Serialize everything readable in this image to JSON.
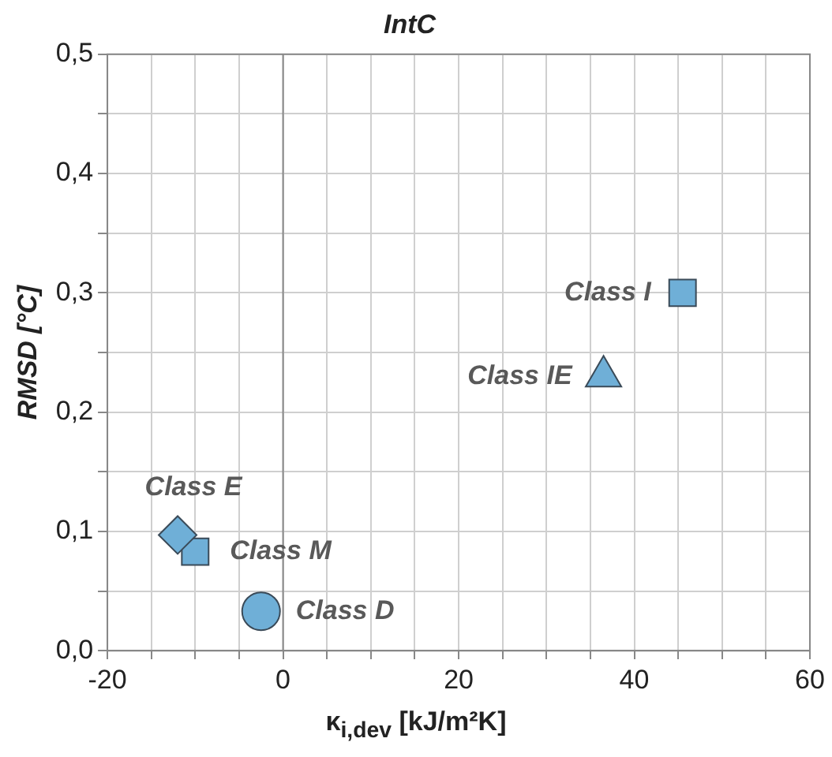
{
  "chart_data": {
    "type": "scatter",
    "title": "IntC",
    "xlabel": "κ$_{i,dev}$ [kJ/m²K]",
    "ylabel": "RMSD [°C]",
    "series": [
      {
        "name": "Class I",
        "color": "#6fafd7",
        "marker": "square",
        "x": [
          45.5
        ],
        "values": [
          0.3
        ]
      },
      {
        "name": "Class IE",
        "color": "#6fafd7",
        "marker": "triangle",
        "x": [
          36.5
        ],
        "values": [
          0.23
        ]
      },
      {
        "name": "Class E",
        "color": "#6fafd7",
        "marker": "diamond",
        "x": [
          -12
        ],
        "values": [
          0.097
        ]
      },
      {
        "name": "Class M",
        "color": "#6fafd7",
        "marker": "square",
        "x": [
          -10
        ],
        "values": [
          0.083
        ]
      },
      {
        "name": "Class D",
        "color": "#6fafd7",
        "marker": "circle",
        "x": [
          -2.5
        ],
        "values": [
          0.033
        ]
      }
    ],
    "xlim": [
      -20,
      60
    ],
    "xticks": [
      -20,
      {
        "value": -15,
        "label": null
      },
      {
        "value": -10,
        "label": null
      },
      {
        "value": -5,
        "label": null
      },
      0,
      {
        "value": 5,
        "label": null
      },
      {
        "value": 10,
        "label": null
      },
      {
        "value": 15,
        "label": null
      },
      20,
      {
        "value": 25,
        "label": null
      },
      {
        "value": 30,
        "label": null
      },
      {
        "value": 35,
        "label": null
      },
      40,
      {
        "value": 45,
        "label": null
      },
      {
        "value": 50,
        "label": null
      },
      {
        "value": 55,
        "label": null
      },
      60
    ],
    "ylim": [
      0,
      0.5
    ],
    "yticks": [
      {
        "value": 0,
        "label": "0,0"
      },
      {
        "value": 0.05,
        "label": null
      },
      {
        "value": 0.1,
        "label": "0,1"
      },
      {
        "value": 0.15,
        "label": null
      },
      {
        "value": 0.2,
        "label": "0,2"
      },
      {
        "value": 0.25,
        "label": null
      },
      {
        "value": 0.3,
        "label": "0,3"
      },
      {
        "value": 0.35,
        "label": null
      },
      {
        "value": 0.4,
        "label": "0,4"
      },
      {
        "value": 0.45,
        "label": null
      },
      {
        "value": 0.5,
        "label": "0,5"
      }
    ],
    "grid": true,
    "line_style": "dashed",
    "ref_lines": [
      {
        "axis": "x",
        "value": 0,
        "color": "#888888"
      }
    ]
  }
}
